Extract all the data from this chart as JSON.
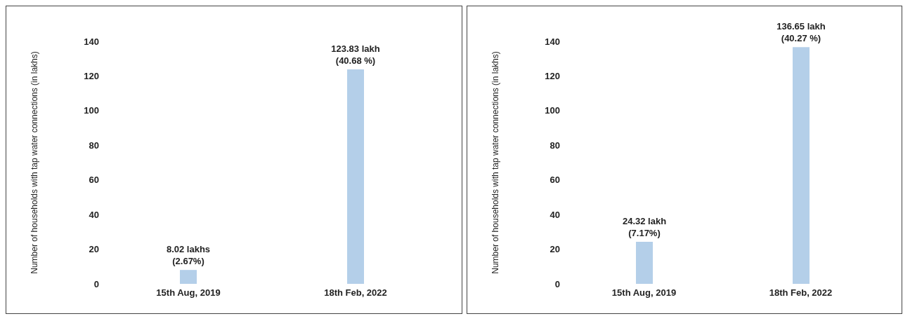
{
  "chart_data": [
    {
      "type": "bar",
      "ylabel": "Number of households with tap water connections (in lakhs)",
      "categories": [
        "15th Aug, 2019",
        "18th Feb, 2022"
      ],
      "values": [
        8.02,
        123.83
      ],
      "color": "#b4cfe9",
      "value_labels": [
        "8.02 lakhs (2.67%)",
        "123.83 lakh (40.68 %)"
      ],
      "ylim": [
        0,
        140
      ],
      "yticks": [
        0,
        20,
        40,
        60,
        80,
        100,
        120,
        140
      ],
      "grid": false
    },
    {
      "type": "bar",
      "ylabel": "Number of households with tap water connections  (in lakhs)",
      "categories": [
        "15th Aug, 2019",
        "18th Feb, 2022"
      ],
      "values": [
        24.32,
        136.65
      ],
      "color": "#b4cfe9",
      "value_labels": [
        "24.32 lakh (7.17%)",
        "136.65 lakh (40.27 %)"
      ],
      "ylim": [
        0,
        140
      ],
      "yticks": [
        0,
        20,
        40,
        60,
        80,
        100,
        120,
        140
      ],
      "grid": false
    }
  ]
}
